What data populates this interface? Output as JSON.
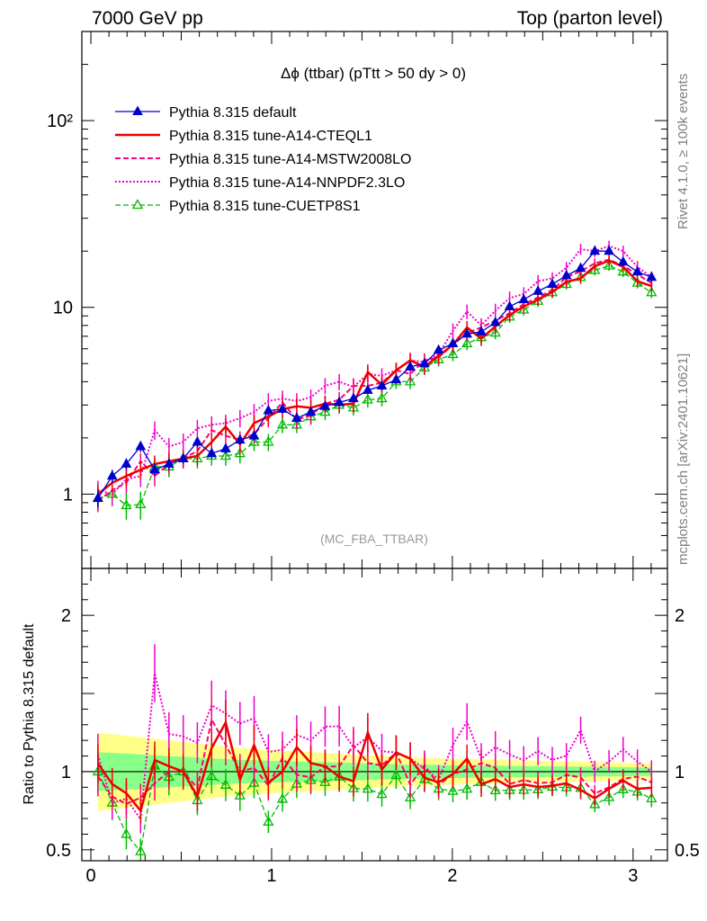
{
  "header": {
    "left": "7000 GeV pp",
    "right": "Top (parton level)"
  },
  "side_text": {
    "rivet": "Rivet 4.1.0, ≥ 100k events",
    "mcplots": "mcplots.cern.ch [arXiv:2401.10621]"
  },
  "colors": {
    "default": "#0000cc",
    "cteql1": "#ee0000",
    "mstw": "#ff0077",
    "nnpdf": "#ee00cc",
    "cuetp8s1": "#00bb00",
    "band_outer": "#ffff88",
    "band_inner": "#88ff88"
  },
  "chart_data": {
    "type": "line",
    "title": "Δϕ (ttbar) (pTtt > 50 dy > 0)",
    "watermark": "(MC_FBA_TTBAR)",
    "xlabel": "",
    "ylabel_ratio": "Ratio to Pythia 8.315 default",
    "xlim": [
      -0.05,
      3.19
    ],
    "ylim_main": [
      0.4,
      300
    ],
    "ylim_ratio": [
      0.43,
      2.3
    ],
    "y_scale_main": "log",
    "legend_position": "top-left",
    "main_y_ticks": [
      {
        "value": 1,
        "label": "1"
      },
      {
        "value": 10,
        "label": "10"
      },
      {
        "value": 100,
        "label": "10²"
      }
    ],
    "ratio_y_ticks": [
      {
        "value": 0.5,
        "label": "0.5"
      },
      {
        "value": 1,
        "label": "1"
      },
      {
        "value": 2,
        "label": "2"
      }
    ],
    "x_ticks": [
      {
        "value": 0,
        "label": "0"
      },
      {
        "value": 1,
        "label": "1"
      },
      {
        "value": 2,
        "label": "2"
      },
      {
        "value": 3,
        "label": "3"
      }
    ],
    "x": [
      0.039,
      0.118,
      0.196,
      0.275,
      0.353,
      0.432,
      0.511,
      0.589,
      0.668,
      0.746,
      0.825,
      0.903,
      0.982,
      1.06,
      1.139,
      1.217,
      1.296,
      1.374,
      1.453,
      1.532,
      1.61,
      1.689,
      1.767,
      1.846,
      1.924,
      2.003,
      2.081,
      2.16,
      2.238,
      2.317,
      2.395,
      2.474,
      2.553,
      2.631,
      2.71,
      2.788,
      2.867,
      2.945,
      3.024,
      3.102
    ],
    "band_rel": [
      0.25,
      0.24,
      0.23,
      0.22,
      0.21,
      0.2,
      0.19,
      0.18,
      0.17,
      0.16,
      0.15,
      0.145,
      0.14,
      0.135,
      0.13,
      0.125,
      0.12,
      0.115,
      0.11,
      0.105,
      0.1,
      0.095,
      0.09,
      0.088,
      0.085,
      0.083,
      0.08,
      0.078,
      0.076,
      0.074,
      0.072,
      0.07,
      0.068,
      0.066,
      0.064,
      0.062,
      0.06,
      0.058,
      0.056,
      0.055
    ],
    "series": [
      {
        "name": "Pythia 8.315 default",
        "key": "default",
        "style": "solid",
        "width": 1.3,
        "marker": "triangle-filled",
        "values": [
          0.95,
          1.25,
          1.45,
          1.8,
          1.35,
          1.45,
          1.55,
          1.9,
          1.65,
          1.75,
          1.95,
          2.05,
          2.8,
          2.85,
          2.55,
          2.75,
          2.95,
          3.1,
          3.25,
          3.6,
          3.8,
          4.1,
          4.8,
          5.0,
          5.9,
          6.4,
          7.2,
          7.4,
          8.3,
          10.1,
          11.0,
          12.2,
          13.3,
          14.8,
          16.2,
          20.0,
          20.0,
          17.5,
          15.5,
          14.5
        ],
        "errs": [
          0.1,
          0.1,
          0.1,
          0.12,
          0.1,
          0.1,
          0.1,
          0.12,
          0.1,
          0.1,
          0.1,
          0.12,
          0.15,
          0.15,
          0.13,
          0.14,
          0.15,
          0.15,
          0.15,
          0.16,
          0.2,
          0.2,
          0.22,
          0.22,
          0.28,
          0.3,
          0.33,
          0.35,
          0.4,
          0.45,
          0.5,
          0.55,
          0.6,
          0.7,
          0.75,
          0.9,
          0.9,
          0.8,
          0.7,
          0.7
        ]
      },
      {
        "name": "Pythia 8.315 tune-A14-CTEQL1",
        "key": "cteql1",
        "style": "solid",
        "width": 2.5,
        "marker": "none",
        "values": [
          1.0,
          1.15,
          1.25,
          1.35,
          1.45,
          1.5,
          1.55,
          1.6,
          1.9,
          2.3,
          1.85,
          2.4,
          2.6,
          2.85,
          2.95,
          2.9,
          3.05,
          3.0,
          3.05,
          4.5,
          3.85,
          4.6,
          5.2,
          4.8,
          5.5,
          6.3,
          7.8,
          6.8,
          7.9,
          9.1,
          10.1,
          11.0,
          12.1,
          13.7,
          14.3,
          16.6,
          17.8,
          16.5,
          13.8,
          13.0
        ],
        "errs": [
          0.12,
          0.13,
          0.14,
          0.15,
          0.16,
          0.17,
          0.17,
          0.18,
          0.2,
          0.25,
          0.22,
          0.26,
          0.28,
          0.3,
          0.3,
          0.3,
          0.32,
          0.3,
          0.32,
          0.45,
          0.38,
          0.45,
          0.5,
          0.45,
          0.5,
          0.55,
          0.65,
          0.6,
          0.65,
          0.7,
          0.75,
          0.8,
          0.85,
          0.9,
          0.95,
          1.05,
          1.1,
          1.05,
          0.9,
          0.85
        ]
      },
      {
        "name": "Pythia 8.315 tune-A14-MSTW2008LO",
        "key": "mstw",
        "style": "dashed",
        "width": 2.0,
        "marker": "none",
        "values": [
          0.92,
          1.05,
          1.15,
          1.5,
          1.25,
          1.45,
          1.55,
          1.7,
          2.2,
          2.05,
          1.95,
          2.1,
          2.55,
          3.1,
          2.5,
          2.65,
          3.05,
          3.2,
          3.8,
          3.8,
          3.95,
          4.6,
          4.4,
          5.2,
          5.4,
          6.3,
          7.3,
          7.8,
          8.5,
          9.3,
          10.4,
          11.3,
          12.4,
          14.5,
          15.6,
          17.2,
          18.0,
          16.7,
          15.0,
          13.5
        ],
        "errs": [
          0.12,
          0.13,
          0.14,
          0.16,
          0.15,
          0.17,
          0.18,
          0.2,
          0.25,
          0.23,
          0.22,
          0.23,
          0.27,
          0.32,
          0.27,
          0.28,
          0.3,
          0.32,
          0.38,
          0.37,
          0.38,
          0.45,
          0.42,
          0.48,
          0.5,
          0.55,
          0.65,
          0.65,
          0.7,
          0.75,
          0.8,
          0.85,
          0.9,
          1.0,
          1.05,
          1.1,
          1.15,
          1.1,
          1.0,
          0.9
        ]
      },
      {
        "name": "Pythia 8.315 tune-A14-NNPDF2.3LO",
        "key": "nnpdf",
        "style": "dotted",
        "width": 2.0,
        "marker": "none",
        "values": [
          1.05,
          1.0,
          1.2,
          1.25,
          2.2,
          1.8,
          1.9,
          2.25,
          2.35,
          2.4,
          2.55,
          2.75,
          3.15,
          3.25,
          3.15,
          3.3,
          3.8,
          4.0,
          3.75,
          4.4,
          4.3,
          4.6,
          5.2,
          5.1,
          5.6,
          7.5,
          9.5,
          8.0,
          9.6,
          11.2,
          11.8,
          13.8,
          14.3,
          16.3,
          20.5,
          20.0,
          21.3,
          20.0,
          16.5,
          14.5
        ],
        "errs": [
          0.13,
          0.13,
          0.15,
          0.16,
          0.25,
          0.2,
          0.21,
          0.25,
          0.26,
          0.26,
          0.27,
          0.29,
          0.32,
          0.33,
          0.32,
          0.33,
          0.38,
          0.4,
          0.37,
          0.44,
          0.42,
          0.45,
          0.5,
          0.5,
          0.55,
          0.7,
          0.85,
          0.75,
          0.85,
          0.95,
          1.0,
          1.1,
          1.1,
          1.2,
          1.4,
          1.4,
          1.45,
          1.4,
          1.2,
          1.05
        ]
      },
      {
        "name": "Pythia 8.315 tune-CUETP8S1",
        "key": "cuetp8s1",
        "style": "dashed",
        "width": 1.3,
        "marker": "triangle-open",
        "values": [
          0.95,
          1.0,
          0.87,
          0.88,
          1.4,
          1.4,
          1.55,
          1.55,
          1.6,
          1.6,
          1.65,
          1.9,
          1.9,
          2.35,
          2.35,
          2.6,
          2.75,
          3.0,
          2.9,
          3.2,
          3.25,
          4.0,
          4.0,
          4.75,
          5.25,
          5.6,
          6.4,
          6.9,
          7.3,
          8.9,
          9.7,
          10.8,
          12.0,
          13.3,
          14.5,
          15.8,
          16.7,
          15.5,
          13.5,
          12.0
        ],
        "errs": [
          0.13,
          0.14,
          0.14,
          0.15,
          0.17,
          0.17,
          0.18,
          0.18,
          0.18,
          0.18,
          0.19,
          0.2,
          0.2,
          0.23,
          0.23,
          0.25,
          0.26,
          0.28,
          0.27,
          0.29,
          0.3,
          0.35,
          0.35,
          0.4,
          0.43,
          0.45,
          0.5,
          0.53,
          0.55,
          0.63,
          0.68,
          0.74,
          0.8,
          0.86,
          0.92,
          0.98,
          1.02,
          0.97,
          0.87,
          0.8
        ]
      }
    ]
  }
}
